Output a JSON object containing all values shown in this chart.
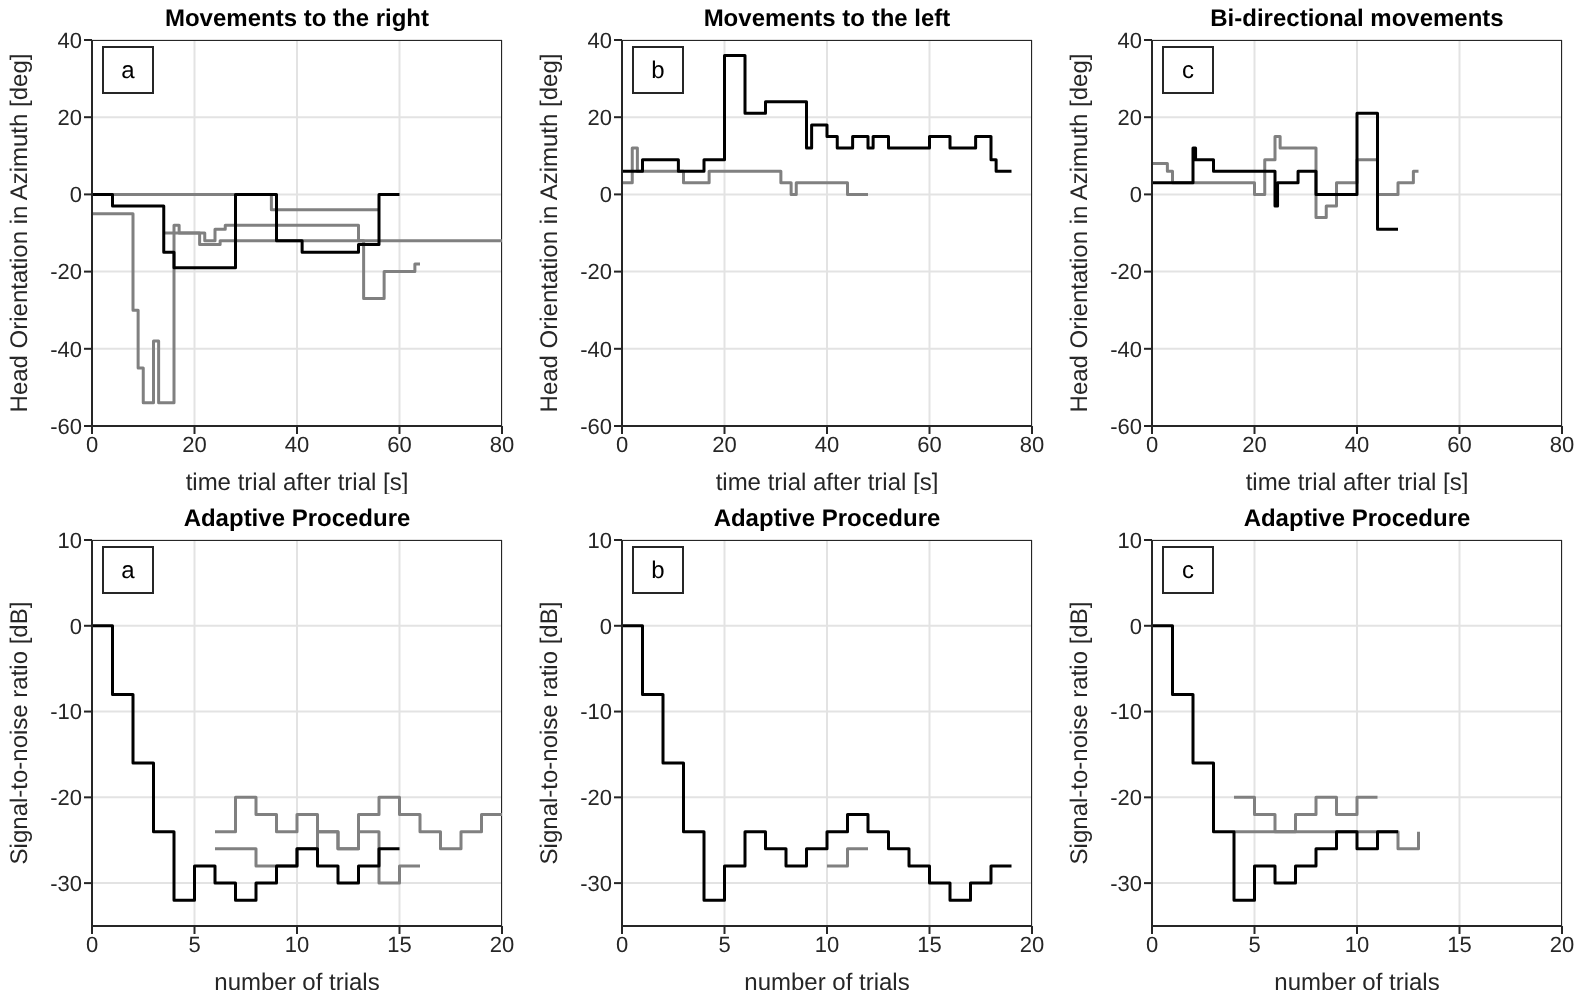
{
  "chart_data": [
    {
      "type": "step",
      "title": "Movements to the right",
      "xlabel": "time trial after trial [s]",
      "ylabel": "Head Orientation in Azimuth [deg]",
      "annotations": [
        "a"
      ],
      "xlim": [
        0,
        80
      ],
      "xticks": [
        0,
        20,
        40,
        60,
        80
      ],
      "ylim": [
        -60,
        40
      ],
      "yticks": [
        -60,
        -40,
        -20,
        0,
        20,
        40
      ],
      "grid": true,
      "series": [
        {
          "color": "#808080",
          "x": [
            0,
            35,
            56
          ],
          "values": [
            0,
            -4,
            -4
          ]
        },
        {
          "color": "#808080",
          "x": [
            0,
            8,
            9,
            10,
            11,
            12,
            13,
            16,
            17,
            21,
            25,
            80
          ],
          "values": [
            -5,
            -30,
            -45,
            -54,
            -54,
            -38,
            -54,
            -8,
            -10,
            -13,
            -12,
            -12
          ]
        },
        {
          "color": "#808080",
          "x": [
            14,
            22,
            24,
            26,
            36,
            52,
            53,
            57,
            63,
            64
          ],
          "values": [
            -10,
            -12,
            -9,
            -8,
            -8,
            -12,
            -27,
            -20,
            -18,
            -18
          ]
        },
        {
          "color": "#000000",
          "x": [
            0,
            4,
            14,
            16,
            28,
            36,
            41,
            52,
            56,
            60
          ],
          "values": [
            0,
            -3,
            -15,
            -19,
            0,
            -12,
            -15,
            -13,
            0,
            0
          ]
        }
      ]
    },
    {
      "type": "step",
      "title": "Movements to the left",
      "xlabel": "time trial after trial [s]",
      "ylabel": "Head Orientation in Azimuth [deg]",
      "annotations": [
        "b"
      ],
      "xlim": [
        0,
        80
      ],
      "xticks": [
        0,
        20,
        40,
        60,
        80
      ],
      "ylim": [
        -60,
        40
      ],
      "yticks": [
        -60,
        -40,
        -20,
        0,
        20,
        40
      ],
      "grid": true,
      "series": [
        {
          "color": "#808080",
          "x": [
            0,
            2,
            3,
            4,
            12,
            17,
            31,
            33,
            34,
            44,
            48
          ],
          "values": [
            3,
            12,
            6,
            6,
            3,
            6,
            3,
            0,
            3,
            0,
            0
          ]
        },
        {
          "color": "#000000",
          "x": [
            0,
            4,
            11,
            16,
            20,
            24,
            28,
            36,
            37,
            40,
            42,
            45,
            48,
            49,
            52,
            60,
            64,
            69,
            72,
            73,
            76
          ],
          "values": [
            6,
            9,
            6,
            9,
            36,
            21,
            24,
            12,
            18,
            15,
            12,
            15,
            12,
            15,
            12,
            15,
            12,
            15,
            9,
            6,
            6
          ]
        }
      ]
    },
    {
      "type": "step",
      "title": "Bi-directional movements",
      "xlabel": "time trial after trial [s]",
      "ylabel": "Head Orientation in Azimuth [deg]",
      "annotations": [
        "c"
      ],
      "xlim": [
        0,
        80
      ],
      "xticks": [
        0,
        20,
        40,
        60,
        80
      ],
      "ylim": [
        -60,
        40
      ],
      "yticks": [
        -60,
        -40,
        -20,
        0,
        20,
        40
      ],
      "grid": true,
      "series": [
        {
          "color": "#808080",
          "x": [
            0,
            3,
            4,
            20,
            22,
            24,
            25,
            32,
            34,
            36,
            40,
            44,
            48,
            51,
            52
          ],
          "values": [
            8,
            6,
            3,
            0,
            9,
            15,
            12,
            -6,
            -3,
            3,
            9,
            0,
            3,
            6,
            6
          ]
        },
        {
          "color": "#000000",
          "x": [
            0,
            8,
            8.5,
            12,
            24,
            24.5,
            28.5,
            32,
            40,
            44,
            48
          ],
          "values": [
            3,
            12,
            9,
            6,
            -3,
            3,
            6,
            0,
            21,
            -9,
            -9
          ]
        }
      ]
    },
    {
      "type": "step",
      "title": "Adaptive Procedure",
      "xlabel": "number of trials",
      "ylabel": "Signal-to-noise ratio [dB]",
      "annotations": [
        "a"
      ],
      "xlim": [
        0,
        20
      ],
      "xticks": [
        0,
        5,
        10,
        15,
        20
      ],
      "ylim": [
        -35,
        10
      ],
      "yticks": [
        -30,
        -20,
        -10,
        0,
        10
      ],
      "grid": true,
      "series": [
        {
          "color": "#808080",
          "x": [
            6,
            7,
            8,
            9,
            10,
            11,
            12,
            13,
            14,
            15,
            16,
            17,
            18,
            19,
            20
          ],
          "values": [
            -24,
            -20,
            -22,
            -24,
            -22,
            -24,
            -26,
            -22,
            -20,
            -22,
            -24,
            -26,
            -24,
            -22,
            -22
          ]
        },
        {
          "color": "#808080",
          "x": [
            6,
            7,
            8,
            9,
            10,
            11,
            12,
            13,
            14,
            15,
            16
          ],
          "values": [
            -26,
            -26,
            -28,
            -28,
            -26,
            -24,
            -26,
            -24,
            -30,
            -28,
            -28
          ]
        },
        {
          "color": "#000000",
          "x": [
            0,
            1,
            2,
            3,
            4,
            5,
            6,
            7,
            8,
            9,
            10,
            11,
            12,
            13,
            14,
            15
          ],
          "values": [
            0,
            -8,
            -16,
            -24,
            -32,
            -28,
            -30,
            -32,
            -30,
            -28,
            -26,
            -28,
            -30,
            -28,
            -26,
            -26
          ]
        }
      ]
    },
    {
      "type": "step",
      "title": "Adaptive Procedure",
      "xlabel": "number of trials",
      "ylabel": "Signal-to-noise ratio [dB]",
      "annotations": [
        "b"
      ],
      "xlim": [
        0,
        20
      ],
      "xticks": [
        0,
        5,
        10,
        15,
        20
      ],
      "ylim": [
        -35,
        10
      ],
      "yticks": [
        -30,
        -20,
        -10,
        0,
        10
      ],
      "grid": true,
      "series": [
        {
          "color": "#808080",
          "x": [
            10,
            11,
            12
          ],
          "values": [
            -28,
            -26,
            -26
          ]
        },
        {
          "color": "#000000",
          "x": [
            0,
            1,
            2,
            3,
            4,
            5,
            6,
            7,
            8,
            9,
            10,
            11,
            12,
            13,
            14,
            15,
            16,
            17,
            18,
            19
          ],
          "values": [
            0,
            -8,
            -16,
            -24,
            -32,
            -28,
            -24,
            -26,
            -28,
            -26,
            -24,
            -22,
            -24,
            -26,
            -28,
            -30,
            -32,
            -30,
            -28,
            -28
          ]
        }
      ]
    },
    {
      "type": "step",
      "title": "Adaptive Procedure",
      "xlabel": "number of trials",
      "ylabel": "Signal-to-noise ratio [dB]",
      "annotations": [
        "c"
      ],
      "xlim": [
        0,
        20
      ],
      "xticks": [
        0,
        5,
        10,
        15,
        20
      ],
      "ylim": [
        -35,
        10
      ],
      "yticks": [
        -30,
        -20,
        -10,
        0,
        10
      ],
      "grid": true,
      "series": [
        {
          "color": "#808080",
          "x": [
            4,
            5,
            6,
            7,
            8,
            9,
            10,
            11
          ],
          "values": [
            -20,
            -22,
            -24,
            -22,
            -20,
            -22,
            -20,
            -20
          ]
        },
        {
          "color": "#808080",
          "x": [
            4,
            11,
            12,
            13
          ],
          "values": [
            -24,
            -24,
            -26,
            -24
          ]
        },
        {
          "color": "#000000",
          "x": [
            0,
            1,
            2,
            3,
            4,
            5,
            6,
            7,
            8,
            9,
            10,
            11,
            12
          ],
          "values": [
            0,
            -8,
            -16,
            -24,
            -32,
            -28,
            -30,
            -28,
            -26,
            -24,
            -26,
            -24,
            -24
          ]
        }
      ]
    }
  ]
}
